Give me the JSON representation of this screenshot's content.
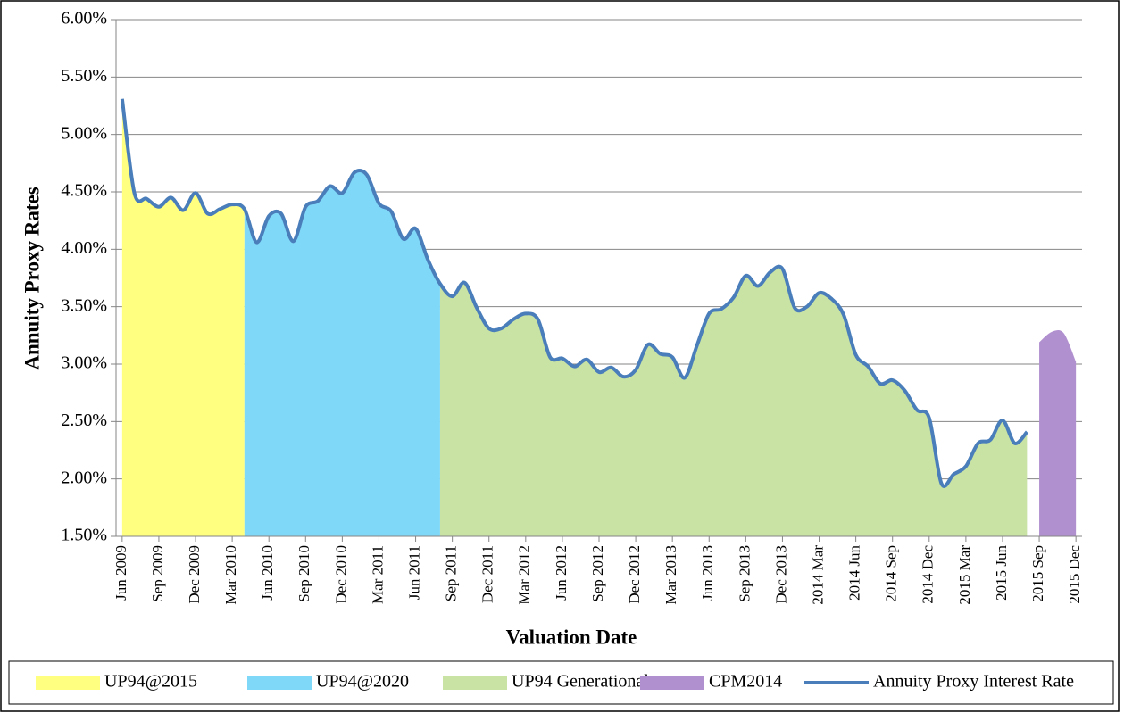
{
  "chart_data": {
    "type": "area-line",
    "x_label": "Valuation Date",
    "y_label": "Annuity Proxy Rates",
    "categories": [
      "Jun 2009",
      null,
      null,
      "Sep 2009",
      null,
      null,
      "Dec 2009",
      null,
      null,
      "Mar 2010",
      null,
      null,
      "Jun 2010",
      null,
      null,
      "Sep 2010",
      null,
      null,
      "Dec 2010",
      null,
      null,
      "Mar 2011",
      null,
      null,
      "Jun 2011",
      null,
      null,
      "Sep 2011",
      null,
      null,
      "Dec 2011",
      null,
      null,
      "Mar 2012",
      null,
      null,
      "Jun 2012",
      null,
      null,
      "Sep 2012",
      null,
      null,
      "Dec 2012",
      null,
      null,
      "Mar 2013",
      null,
      null,
      "Jun 2013",
      null,
      null,
      "Sep 2013",
      null,
      null,
      "Dec 2013",
      null,
      null,
      "2014 Mar",
      null,
      null,
      "2014 Jun",
      null,
      null,
      "2014 Sep",
      null,
      null,
      "2014 Dec",
      null,
      null,
      "2015 Mar",
      null,
      null,
      "2015 Jun",
      null,
      null,
      "2015 Sep",
      null,
      null,
      "2015 Dec"
    ],
    "series": [
      {
        "name": "UP94@2015",
        "type": "area",
        "color": "#ffff80",
        "values": [
          5.31,
          4.49,
          4.44,
          4.37,
          4.45,
          4.34,
          4.49,
          4.31,
          4.35,
          4.39,
          4.35,
          null,
          null,
          null,
          null,
          null,
          null,
          null,
          null,
          null,
          null,
          null,
          null,
          null,
          null,
          null,
          null,
          null,
          null,
          null,
          null,
          null,
          null,
          null,
          null,
          null,
          null,
          null,
          null,
          null,
          null,
          null,
          null,
          null,
          null,
          null,
          null,
          null,
          null,
          null,
          null,
          null,
          null,
          null,
          null,
          null,
          null,
          null,
          null,
          null,
          null,
          null,
          null,
          null,
          null,
          null,
          null,
          null,
          null,
          null,
          null,
          null,
          null,
          null,
          null,
          null,
          null,
          null,
          null
        ]
      },
      {
        "name": "UP94@2020",
        "type": "area",
        "color": "#80d8f8",
        "values": [
          null,
          null,
          null,
          null,
          null,
          null,
          null,
          null,
          null,
          null,
          4.35,
          4.06,
          4.29,
          4.31,
          4.07,
          4.37,
          4.42,
          4.55,
          4.49,
          4.67,
          4.65,
          4.4,
          4.33,
          4.09,
          4.18,
          3.91,
          3.7,
          null,
          null,
          null,
          null,
          null,
          null,
          null,
          null,
          null,
          null,
          null,
          null,
          null,
          null,
          null,
          null,
          null,
          null,
          null,
          null,
          null,
          null,
          null,
          null,
          null,
          null,
          null,
          null,
          null,
          null,
          null,
          null,
          null,
          null,
          null,
          null,
          null,
          null,
          null,
          null,
          null,
          null,
          null,
          null,
          null,
          null,
          null,
          null,
          null,
          null,
          null,
          null
        ]
      },
      {
        "name": "UP94 Generational",
        "type": "area",
        "color": "#c9e3a5",
        "values": [
          null,
          null,
          null,
          null,
          null,
          null,
          null,
          null,
          null,
          null,
          null,
          null,
          null,
          null,
          null,
          null,
          null,
          null,
          null,
          null,
          null,
          null,
          null,
          null,
          null,
          null,
          3.7,
          3.59,
          3.71,
          3.49,
          3.31,
          3.31,
          3.39,
          3.44,
          3.39,
          3.06,
          3.05,
          2.98,
          3.04,
          2.93,
          2.97,
          2.89,
          2.95,
          3.17,
          3.09,
          3.06,
          2.88,
          3.16,
          3.44,
          3.48,
          3.58,
          3.77,
          3.68,
          3.8,
          3.83,
          3.49,
          3.5,
          3.62,
          3.57,
          3.43,
          3.08,
          2.98,
          2.83,
          2.86,
          2.77,
          2.6,
          2.53,
          1.96,
          2.04,
          2.11,
          2.31,
          2.34,
          2.51,
          2.31,
          2.41,
          null,
          null,
          null,
          null
        ]
      },
      {
        "name": "CPM2014",
        "type": "area",
        "color": "#b190d0",
        "values": [
          null,
          null,
          null,
          null,
          null,
          null,
          null,
          null,
          null,
          null,
          null,
          null,
          null,
          null,
          null,
          null,
          null,
          null,
          null,
          null,
          null,
          null,
          null,
          null,
          null,
          null,
          null,
          null,
          null,
          null,
          null,
          null,
          null,
          null,
          null,
          null,
          null,
          null,
          null,
          null,
          null,
          null,
          null,
          null,
          null,
          null,
          null,
          null,
          null,
          null,
          null,
          null,
          null,
          null,
          null,
          null,
          null,
          null,
          null,
          null,
          null,
          null,
          null,
          null,
          null,
          null,
          null,
          null,
          null,
          null,
          null,
          null,
          null,
          null,
          null,
          3.19,
          3.28,
          3.27,
          3.02
        ]
      },
      {
        "name": "Annuity Proxy Interest Rate",
        "type": "line",
        "color": "#4a7ebb",
        "values": [
          5.31,
          4.49,
          4.44,
          4.37,
          4.45,
          4.34,
          4.49,
          4.31,
          4.35,
          4.39,
          4.35,
          4.06,
          4.29,
          4.31,
          4.07,
          4.37,
          4.42,
          4.55,
          4.49,
          4.67,
          4.65,
          4.4,
          4.33,
          4.09,
          4.18,
          3.91,
          3.7,
          3.59,
          3.71,
          3.49,
          3.31,
          3.31,
          3.39,
          3.44,
          3.39,
          3.06,
          3.05,
          2.98,
          3.04,
          2.93,
          2.97,
          2.89,
          2.95,
          3.17,
          3.09,
          3.06,
          2.88,
          3.16,
          3.44,
          3.48,
          3.58,
          3.77,
          3.68,
          3.8,
          3.83,
          3.49,
          3.5,
          3.62,
          3.57,
          3.43,
          3.08,
          2.98,
          2.83,
          2.86,
          2.77,
          2.6,
          2.53,
          1.96,
          2.04,
          2.11,
          2.31,
          2.34,
          2.51,
          2.31,
          2.41,
          null,
          null,
          null,
          null
        ]
      }
    ],
    "ylim": [
      1.5,
      6
    ],
    "yticks": [
      {
        "value": 1.5,
        "label": "1.50%"
      },
      {
        "value": 2,
        "label": "2.00%"
      },
      {
        "value": 2.5,
        "label": "2.50%"
      },
      {
        "value": 3,
        "label": "3.00%"
      },
      {
        "value": 3.5,
        "label": "3.50%"
      },
      {
        "value": 4,
        "label": "4.00%"
      },
      {
        "value": 4.5,
        "label": "4.50%"
      },
      {
        "value": 5,
        "label": "5.00%"
      },
      {
        "value": 5.5,
        "label": "5.50%"
      },
      {
        "value": 6,
        "label": "6.00%"
      }
    ],
    "grid": true,
    "legend": "bottom"
  }
}
